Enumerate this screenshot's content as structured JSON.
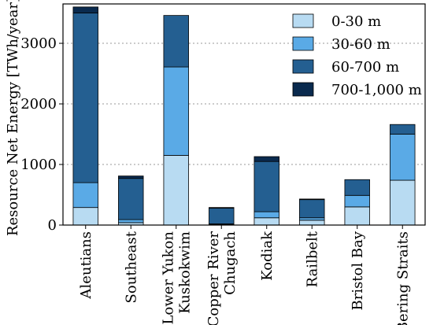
{
  "chart_data": {
    "type": "bar",
    "stacked": true,
    "categories": [
      "Aleutians",
      "Southeast",
      "Lower Yukon\nKuskokwim",
      "Copper River\nChugach",
      "Kodiak",
      "Railbelt",
      "Bristol Bay",
      "Bering Straits"
    ],
    "series": [
      {
        "name": "0-30 m",
        "color": "#b8dbf2",
        "values": [
          290,
          40,
          1150,
          10,
          120,
          80,
          300,
          740
        ]
      },
      {
        "name": "30-60 m",
        "color": "#5aaae6",
        "values": [
          410,
          50,
          1460,
          10,
          100,
          40,
          190,
          760
        ]
      },
      {
        "name": "60-700 m",
        "color": "#245f91",
        "values": [
          2800,
          680,
          850,
          260,
          830,
          300,
          260,
          160
        ]
      },
      {
        "name": "700-1,000 m",
        "color": "#0a2a4e",
        "values": [
          100,
          40,
          0,
          10,
          80,
          10,
          0,
          0
        ]
      }
    ],
    "ylabel": "Resource Net Energy [TWh/year]",
    "yticks": [
      0,
      1000,
      2000,
      3000
    ],
    "ylim": [
      0,
      3650
    ],
    "grid": "horizontal dotted",
    "legend_position": "top-right"
  }
}
